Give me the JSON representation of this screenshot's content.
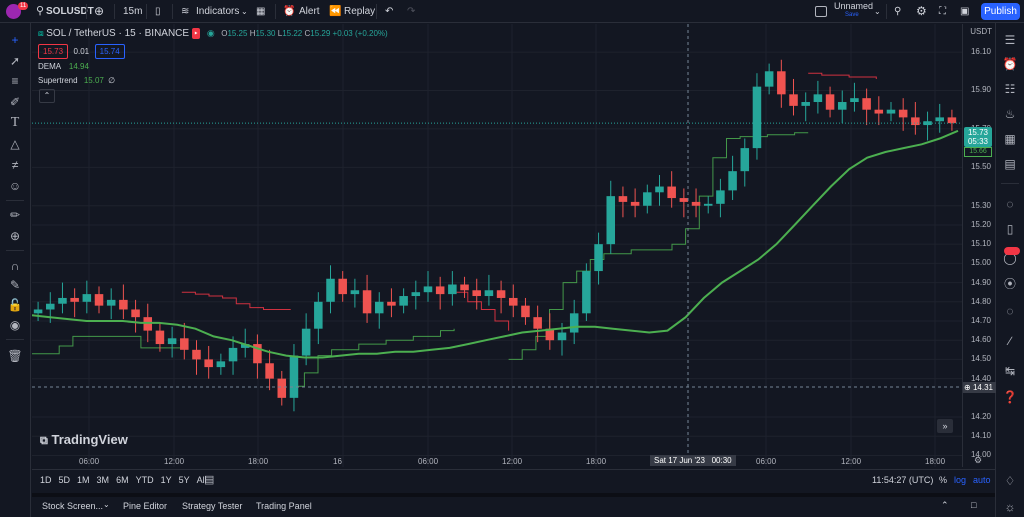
{
  "topbar": {
    "badge": "11",
    "symbol": "SOLUSDT",
    "interval": "15m",
    "indicators": "Indicators",
    "alert": "Alert",
    "replay": "Replay",
    "layout_name": "Unnamed",
    "layout_status": "Save",
    "publish": "Publish"
  },
  "legend": {
    "title": "SOL / TetherUS · 15 · BINANCE",
    "open_label": "O",
    "open": "15.25",
    "high_label": "H",
    "high": "15.30",
    "low_label": "L",
    "low": "15.22",
    "close_label": "C",
    "close": "15.29",
    "change": "+0.03 (+0.20%)",
    "bid": "15.73",
    "spread": "0.01",
    "ask": "15.74",
    "ind1_name": "DEMA",
    "ind1_value": "14.94",
    "ind2_name": "Supertrend",
    "ind2_value": "15.07"
  },
  "price_scale": {
    "currency": "USDT",
    "ticks": [
      "16.10",
      "15.90",
      "15.70",
      "15.50",
      "15.30",
      "15.20",
      "15.10",
      "15.00",
      "14.90",
      "14.80",
      "14.70",
      "14.60",
      "14.50",
      "14.40",
      "14.20",
      "14.10",
      "14.00"
    ],
    "last_price": "15.73",
    "countdown": "05:33",
    "supertrend_price": "15.66",
    "crosshair_price": "14.31"
  },
  "time_scale": {
    "ticks": [
      "06:00",
      "12:00",
      "18:00",
      "16",
      "06:00",
      "12:00",
      "18:00",
      "06:00",
      "12:00",
      "18:00"
    ],
    "crosshair_time": "Sat 17 Jun '23   00:30"
  },
  "bottom": {
    "ranges": [
      "1D",
      "5D",
      "1M",
      "3M",
      "6M",
      "YTD",
      "1Y",
      "5Y",
      "All"
    ],
    "clock": "11:54:27 (UTC)",
    "pct": "%",
    "log": "log",
    "auto": "auto"
  },
  "panels": [
    "Stock Screen...",
    "Pine Editor",
    "Strategy Tester",
    "Trading Panel"
  ],
  "watermark": "TradingView",
  "colors": {
    "up": "#26a69a",
    "down": "#ef5350",
    "dema": "#4caf50",
    "supertrend_up": "#4caf50",
    "supertrend_down": "#f23645",
    "accent": "#2962ff",
    "alert_badge": "#f23645"
  },
  "chart_data": {
    "type": "line",
    "symbol": "SOL / TetherUS",
    "ylim": [
      14.0,
      16.2
    ],
    "dema": [
      14.73,
      14.72,
      14.71,
      14.7,
      14.7,
      14.7,
      14.69,
      14.69,
      14.68,
      14.66,
      14.62,
      14.6,
      14.57,
      14.54,
      14.52,
      14.51,
      14.51,
      14.52,
      14.53,
      14.53,
      14.54,
      14.54,
      14.55,
      14.56,
      14.58,
      14.6,
      14.62,
      14.64,
      14.65,
      14.66,
      14.67,
      14.67,
      14.66,
      14.65,
      14.64,
      14.65,
      14.72,
      14.82,
      14.9,
      14.96,
      15.02,
      15.1,
      15.2,
      15.3,
      15.4,
      15.49,
      15.55,
      15.58,
      15.6,
      15.62,
      15.65,
      15.69
    ],
    "supertrend": [
      {
        "dir": "up",
        "values": [
          14.53,
          14.53,
          14.57,
          14.62,
          14.62,
          14.62,
          14.62,
          14.62,
          14.56,
          14.56,
          14.56,
          14.56
        ]
      },
      {
        "dir": "down",
        "values": [
          14.85,
          14.84,
          14.83,
          14.82,
          14.79,
          14.77,
          14.76,
          14.76,
          14.76
        ]
      },
      {
        "dir": "up",
        "values": [
          14.36,
          14.43,
          14.52,
          14.55,
          14.55,
          14.58,
          14.58,
          14.6,
          14.6,
          14.62,
          14.62,
          14.65,
          14.66
        ]
      },
      {
        "dir": "down",
        "values": [
          14.85,
          14.8,
          14.76,
          14.7,
          14.65
        ]
      },
      {
        "dir": "up",
        "values": [
          14.5,
          14.55,
          14.62,
          14.76,
          14.9,
          14.96,
          15.02,
          15.05,
          15.05,
          15.07,
          15.07,
          15.07,
          15.1,
          15.18,
          15.35,
          15.55,
          15.65,
          15.66,
          15.66,
          15.67,
          15.67,
          15.68,
          15.68
        ]
      },
      {
        "dir": "down",
        "values": [
          15.99,
          15.98,
          15.98,
          15.97,
          15.97,
          15.96
        ]
      }
    ],
    "candle_close": [
      14.76,
      14.79,
      14.82,
      14.8,
      14.84,
      14.78,
      14.81,
      14.76,
      14.72,
      14.65,
      14.58,
      14.61,
      14.55,
      14.5,
      14.46,
      14.49,
      14.56,
      14.58,
      14.48,
      14.4,
      14.3,
      14.52,
      14.66,
      14.8,
      14.92,
      14.84,
      14.86,
      14.74,
      14.8,
      14.78,
      14.83,
      14.85,
      14.88,
      14.84,
      14.89,
      14.86,
      14.83,
      14.86,
      14.82,
      14.78,
      14.72,
      14.66,
      14.6,
      14.64,
      14.74,
      14.96,
      15.1,
      15.35,
      15.32,
      15.3,
      15.37,
      15.4,
      15.34,
      15.32,
      15.3,
      15.31,
      15.38,
      15.48,
      15.6,
      15.92,
      16.0,
      15.88,
      15.82,
      15.84,
      15.88,
      15.8,
      15.84,
      15.86,
      15.8,
      15.78,
      15.8,
      15.76,
      15.72,
      15.74,
      15.76,
      15.73
    ]
  }
}
